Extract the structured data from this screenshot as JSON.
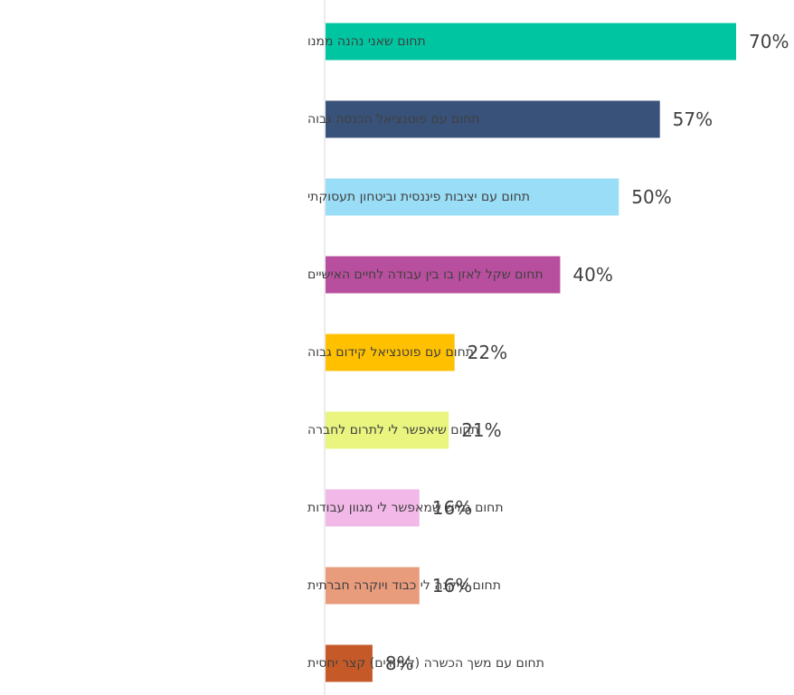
{
  "chart_data": {
    "type": "bar",
    "orientation": "horizontal",
    "categories": [
      "תחום שאני נהנה ממנו",
      "תחום עם פוטנציאל הכנסה גבוה",
      "תחום עם יציבות פיננסית וביטחון תעסוקתי",
      "תחום שקל לאזן בו בין עבודה לחיים האישיים",
      "תחום עם פוטנציאל קידום גבוה",
      "תחום שיאפשר לי לתרום לחברה",
      "תחום גמיש שמאפשר לי מגוון עבודות",
      "תחום שיקנה לי כבוד ויוקרה חברתית",
      "תחום עם משך הכשרה (לימודים) קצר יחסית"
    ],
    "values": [
      70,
      57,
      50,
      40,
      22,
      21,
      16,
      16,
      8
    ],
    "value_labels": [
      "70%",
      "57%",
      "50%",
      "40%",
      "22%",
      "21%",
      "16%",
      "16%",
      "8%"
    ],
    "colors": [
      "#00C5A1",
      "#38527A",
      "#9ADDF7",
      "#B84F9E",
      "#FFC000",
      "#E9F57F",
      "#F2B8E8",
      "#E89C7C",
      "#C55A28"
    ],
    "xlim": [
      0,
      70
    ],
    "grid": false,
    "legend": "none",
    "title": "",
    "xlabel": "",
    "ylabel": ""
  }
}
